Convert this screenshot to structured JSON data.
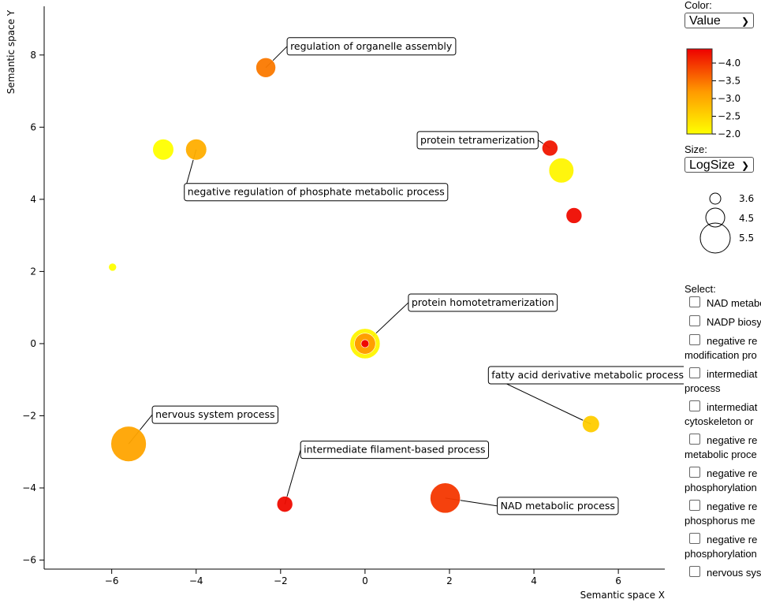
{
  "chart_data": {
    "type": "scatter",
    "xlabel": "Semantic space X",
    "ylabel": "Semantic space Y",
    "xlim": [
      -7.6,
      7.1
    ],
    "ylim": [
      -6.25,
      9.35
    ],
    "x_ticks": [
      -6,
      -4,
      -2,
      0,
      2,
      4,
      6
    ],
    "y_ticks": [
      -6,
      -4,
      -2,
      0,
      2,
      4,
      6,
      8
    ],
    "color_metric": "Value",
    "size_metric": "LogSize",
    "points": [
      {
        "x": -2.35,
        "y": 7.65,
        "value": -3.3,
        "logsize": 4.2,
        "label": "regulation of organelle assembly"
      },
      {
        "x": -4.78,
        "y": 5.38,
        "value": -2.0,
        "logsize": 4.3,
        "label": ""
      },
      {
        "x": -4.0,
        "y": 5.38,
        "value": -2.8,
        "logsize": 4.3,
        "label": "negative regulation of phosphate metabolic process"
      },
      {
        "x": 4.38,
        "y": 5.42,
        "value": -4.2,
        "logsize": 3.9,
        "label": "protein tetramerization"
      },
      {
        "x": 4.65,
        "y": 4.8,
        "value": -2.1,
        "logsize": 4.6,
        "label": ""
      },
      {
        "x": 4.95,
        "y": 3.55,
        "value": -4.3,
        "logsize": 3.9,
        "label": ""
      },
      {
        "x": -5.98,
        "y": 2.12,
        "value": -2.0,
        "logsize": 3.3,
        "label": ""
      },
      {
        "x": 0.0,
        "y": 0.0,
        "value": -2.1,
        "logsize": 5.0,
        "label": ""
      },
      {
        "x": 0.0,
        "y": 0.0,
        "value": -3.0,
        "logsize": 4.3,
        "label": ""
      },
      {
        "x": 0.0,
        "y": 0.0,
        "value": -4.4,
        "logsize": 3.3,
        "label": "protein homotetramerization"
      },
      {
        "x": 5.35,
        "y": -2.23,
        "value": -2.5,
        "logsize": 4.0,
        "label": "fatty acid derivative metabolic process"
      },
      {
        "x": -5.6,
        "y": -2.78,
        "value": -2.9,
        "logsize": 5.4,
        "label": "nervous system process"
      },
      {
        "x": -1.9,
        "y": -4.45,
        "value": -4.3,
        "logsize": 3.9,
        "label": "intermediate filament-based process"
      },
      {
        "x": 1.9,
        "y": -4.28,
        "value": -3.9,
        "logsize": 5.0,
        "label": "NAD metabolic process"
      }
    ],
    "colorbar": {
      "min": -4.4,
      "max": -2.0,
      "ticks": [
        "−4.0",
        "−3.5",
        "−3.0",
        "−2.5",
        "−2.0"
      ]
    },
    "size_legend": {
      "ticks": [
        "3.6",
        "4.5",
        "5.5"
      ]
    }
  },
  "controls": {
    "color_label": "Color:",
    "color_selected": "Value",
    "size_label": "Size:",
    "size_selected": "LogSize",
    "select_label": "Select:"
  },
  "select_items": [
    {
      "line1": "NAD metabo",
      "line2": ""
    },
    {
      "line1": "NADP biosy",
      "line2": ""
    },
    {
      "line1": "negative re",
      "line2": "modification pro"
    },
    {
      "line1": "intermediat",
      "line2": "process"
    },
    {
      "line1": "intermediat",
      "line2": "cytoskeleton or"
    },
    {
      "line1": "negative re",
      "line2": "metabolic proce"
    },
    {
      "line1": "negative re",
      "line2": "phosphorylation"
    },
    {
      "line1": "negative re",
      "line2": "phosphorus me"
    },
    {
      "line1": "negative re",
      "line2": "phosphorylation"
    },
    {
      "line1": "nervous sys",
      "line2": ""
    }
  ]
}
